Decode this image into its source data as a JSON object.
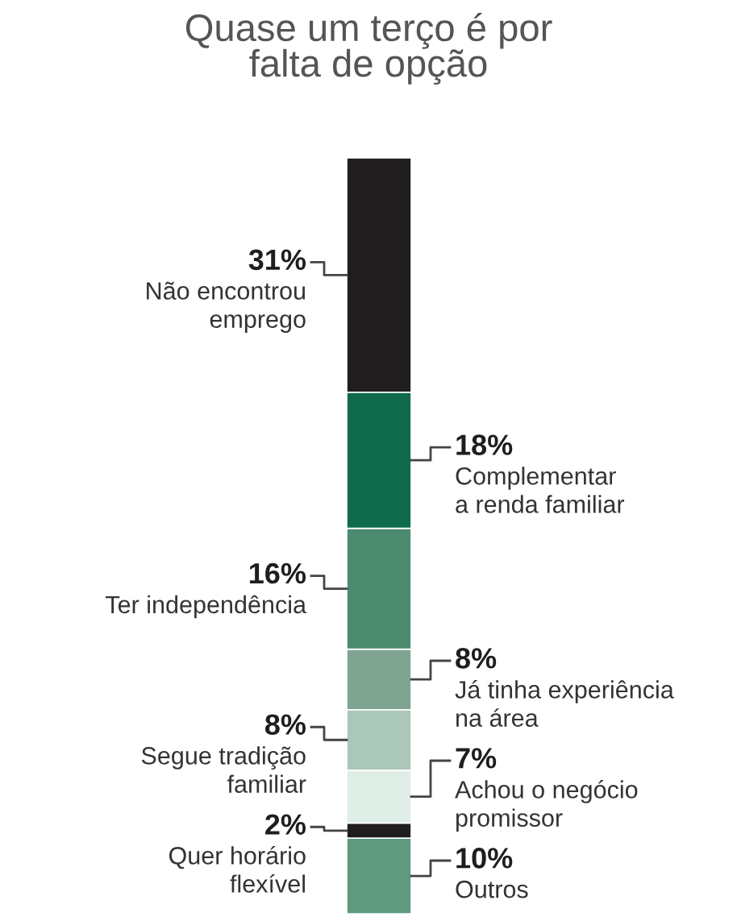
{
  "chart_data": {
    "type": "bar",
    "title": "Quase um terço é por\nfalta de opção",
    "categories": [
      null
    ],
    "stacked": true,
    "series": [
      {
        "name": "Outros",
        "color": "#5f9a7f",
        "values": [
          10
        ],
        "value_labels": [
          "10%"
        ]
      },
      {
        "name": "Quer horário\nflexível",
        "color": "#1f1d1e",
        "values": [
          2
        ],
        "value_labels": [
          "2%"
        ]
      },
      {
        "name": "Achou o negócio\npromissor",
        "color": "#dfeee7",
        "values": [
          7
        ],
        "value_labels": [
          "7%"
        ]
      },
      {
        "name": "Segue tradição\nfamiliar",
        "color": "#aac7ba",
        "values": [
          8
        ],
        "value_labels": [
          "8%"
        ]
      },
      {
        "name": "Já tinha experiência\nna área",
        "color": "#7fa592",
        "values": [
          8
        ],
        "value_labels": [
          "8%"
        ]
      },
      {
        "name": "Ter independência",
        "color": "#4c8a6f",
        "values": [
          16
        ],
        "value_labels": [
          "16%"
        ]
      },
      {
        "name": "Complementar\na renda familiar",
        "color": "#0f6b4c",
        "values": [
          18
        ],
        "value_labels": [
          "18%"
        ]
      },
      {
        "name": "Não encontrou\nemprego",
        "color": "#1f1d1e",
        "values": [
          31
        ],
        "value_labels": [
          "31%"
        ]
      }
    ]
  }
}
